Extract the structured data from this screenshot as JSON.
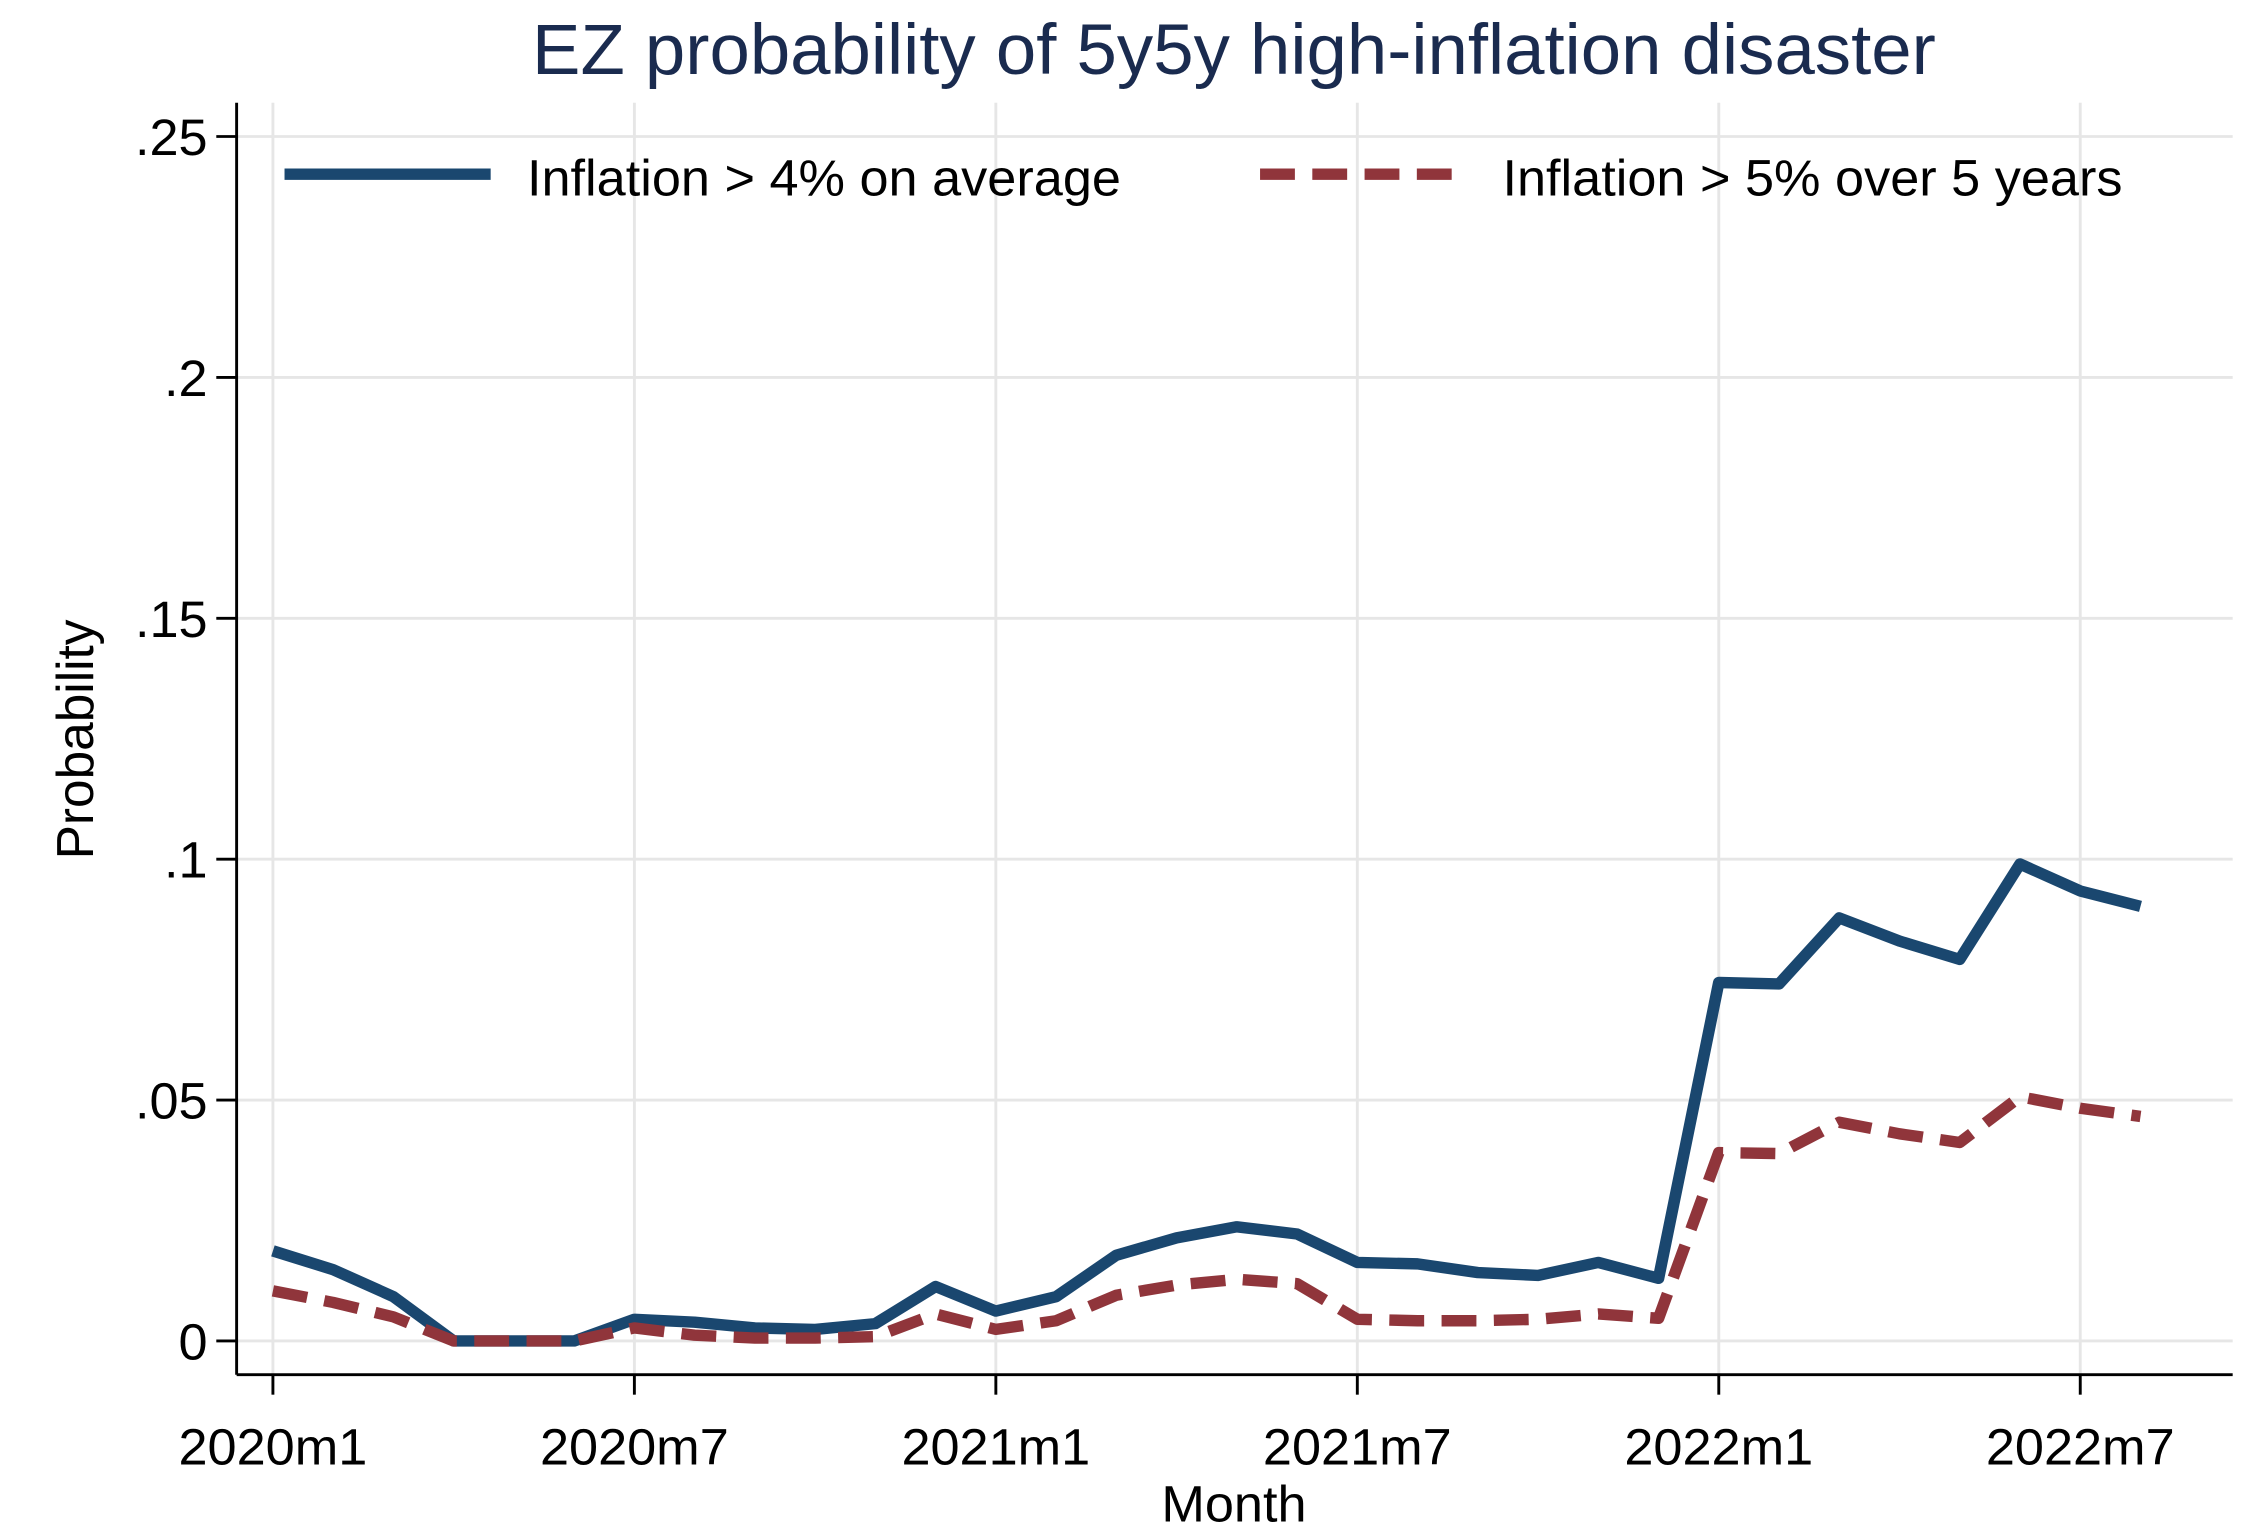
{
  "chart_data": {
    "type": "line",
    "title": "EZ probability of 5y5y high-inflation disaster",
    "x_label": "Month",
    "y_label": "Probability",
    "categories": [
      "2020m1",
      null,
      null,
      null,
      null,
      null,
      "2020m7",
      null,
      null,
      null,
      null,
      null,
      "2021m1",
      null,
      null,
      null,
      null,
      null,
      "2021m7",
      null,
      null,
      null,
      null,
      null,
      "2022m1",
      null,
      null,
      null,
      null,
      null,
      "2022m7",
      null
    ],
    "series": [
      {
        "name": "Inflation > 4% on average",
        "color": "#1a476f",
        "dash": "solid",
        "values": [
          0.0187,
          0.0148,
          0.0092,
          0,
          0,
          0,
          0.0045,
          0.0039,
          0.0027,
          0.0024,
          0.0036,
          0.0113,
          0.0062,
          0.0092,
          0.0178,
          0.0214,
          0.0237,
          0.0222,
          0.0163,
          0.016,
          0.0142,
          0.0136,
          0.0163,
          0.013,
          0.0744,
          0.0741,
          0.0878,
          0.083,
          0.0792,
          0.099,
          0.0934,
          0.0902
        ]
      },
      {
        "name": "Inflation > 5% over 5 years",
        "color": "#90353b",
        "dash": "dashed",
        "values": [
          0.0104,
          0.008,
          0.005,
          0,
          0,
          0,
          0.0027,
          0.0012,
          0.0006,
          0.0006,
          0.0009,
          0.0056,
          0.0024,
          0.0042,
          0.0095,
          0.0116,
          0.0128,
          0.0119,
          0.0045,
          0.0042,
          0.0042,
          0.0045,
          0.0056,
          0.0047,
          0.0391,
          0.0389,
          0.0454,
          0.043,
          0.0412,
          0.0507,
          0.0483,
          0.0466
        ]
      }
    ],
    "ylim": [
      -0.007,
      0.257
    ],
    "yticks": [
      0,
      {
        "value": 0.05,
        "label": ".05"
      },
      {
        "value": 0.1,
        "label": ".1"
      },
      {
        "value": 0.15,
        "label": ".15"
      },
      {
        "value": 0.2,
        "label": ".2"
      },
      {
        "value": 0.25,
        "label": ".25"
      }
    ],
    "grid": true,
    "legend_position": "top"
  }
}
